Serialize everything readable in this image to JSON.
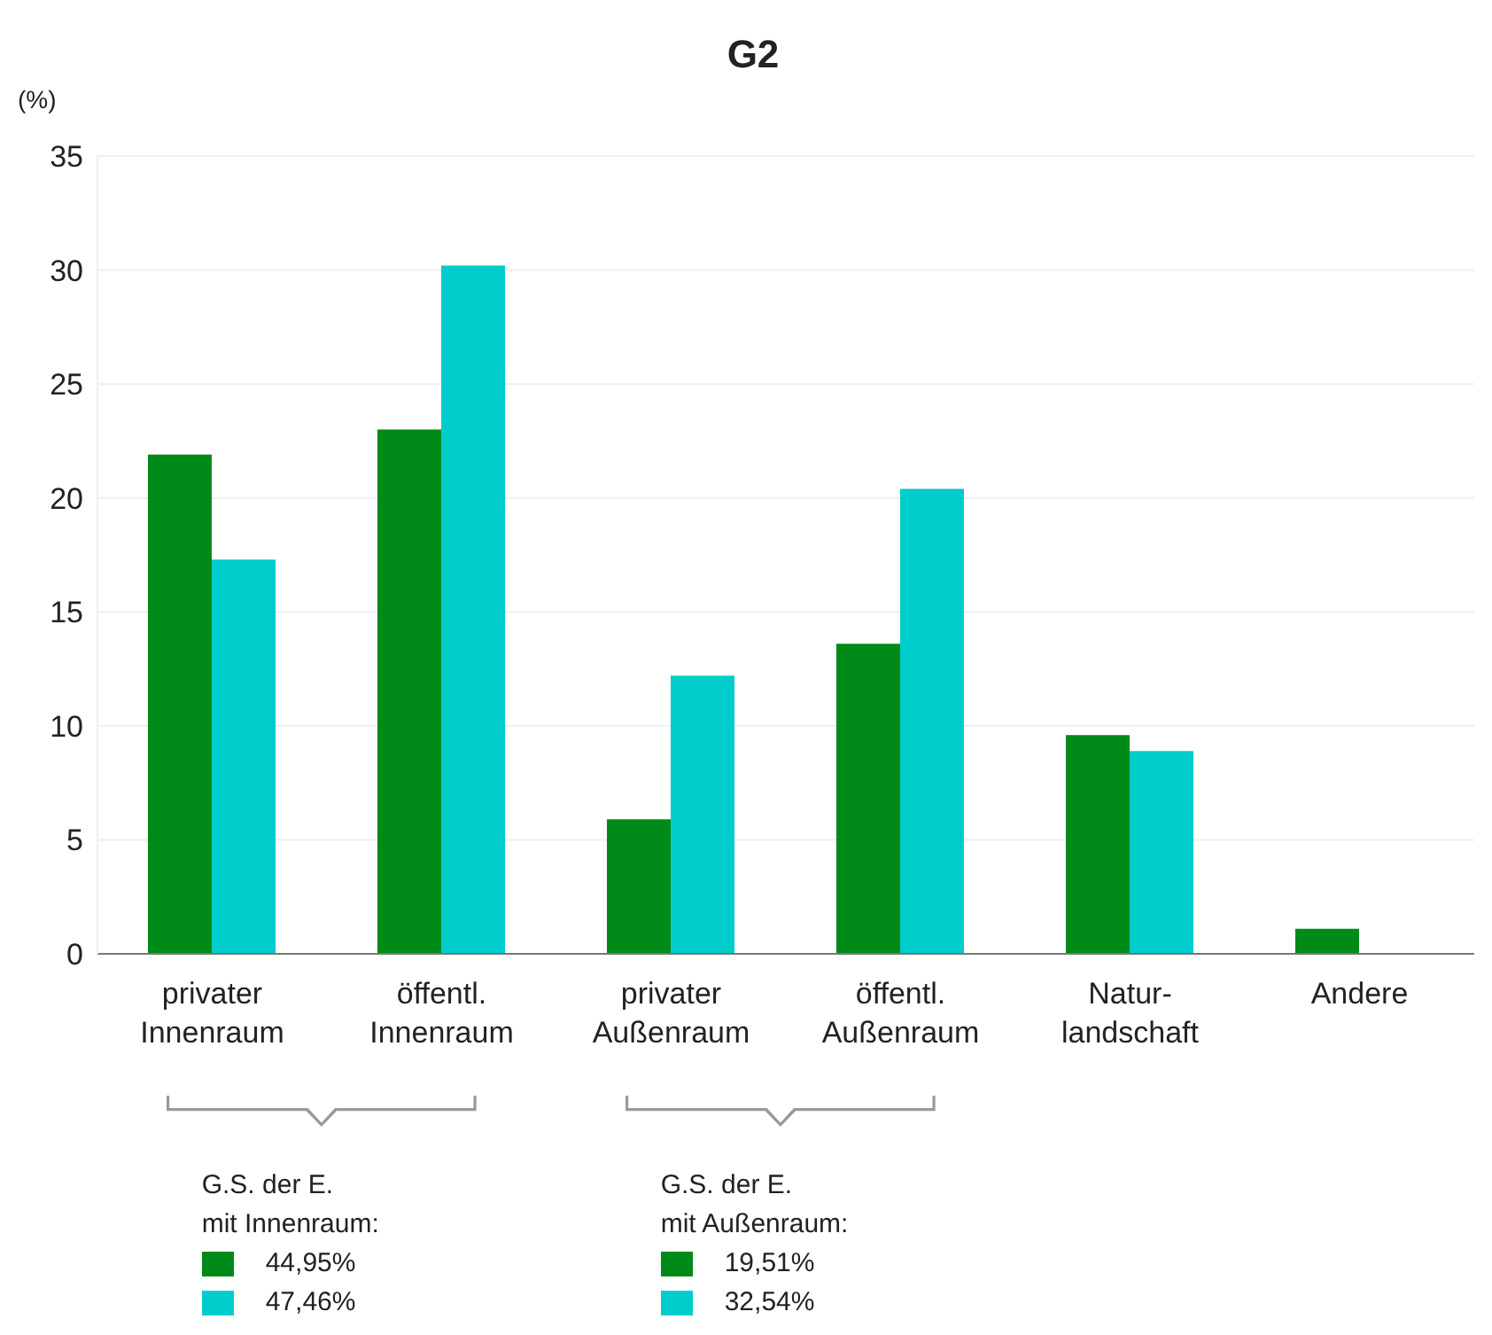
{
  "chart_data": {
    "type": "bar",
    "title": "G2",
    "ylabel": "(%)",
    "categories": [
      "privater\nInnenraum",
      "öffentl.\nInnenraum",
      "privater\nAußenraum",
      "öffentl.\nAußenraum",
      "Natur-\nlandschaft",
      "Andere"
    ],
    "series": [
      {
        "color": "#008a17",
        "values": [
          21.9,
          23.0,
          5.9,
          13.6,
          9.6,
          1.1
        ]
      },
      {
        "color": "#00cccc",
        "values": [
          17.3,
          30.2,
          12.2,
          20.4,
          8.9,
          null
        ]
      }
    ],
    "ylim": [
      0,
      35
    ],
    "yticks": [
      0,
      5,
      10,
      15,
      20,
      25,
      30,
      35
    ],
    "grid": "y",
    "legend": false,
    "annotations": [
      "G.S. der E.\nmit Innenraum:",
      "44,95%",
      "47,46%",
      "G.S. der E.\nmit Außenraum:",
      "19,51%",
      "32,54%"
    ]
  }
}
